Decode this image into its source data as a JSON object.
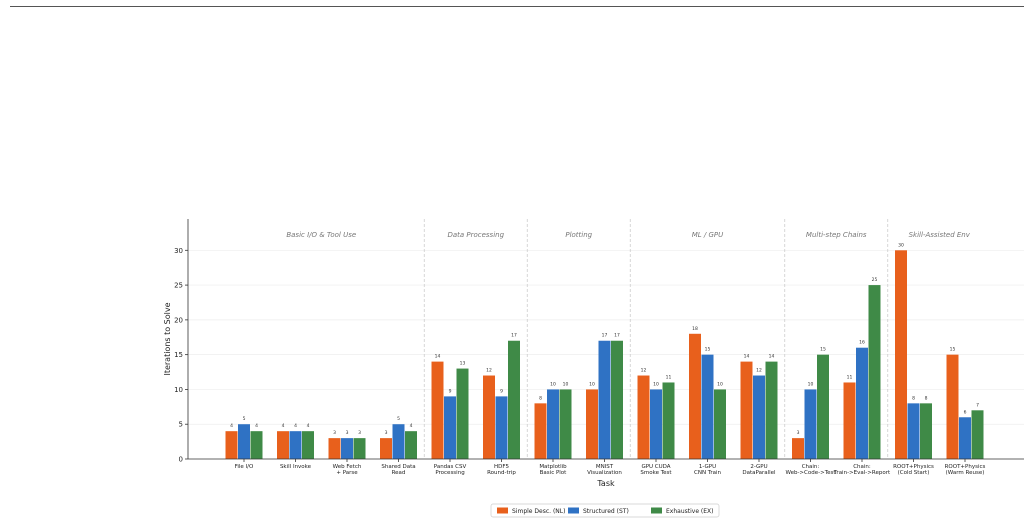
{
  "chart_data": {
    "type": "bar",
    "xlabel": "Task",
    "ylabel": "Iterations to Solve",
    "ylim": [
      0,
      34.5
    ],
    "yticks": [
      0,
      5,
      10,
      15,
      20,
      25,
      30
    ],
    "grid": true,
    "legend_placement": "bottom-center",
    "categories": [
      [
        "File I/O"
      ],
      [
        "Skill Invoke"
      ],
      [
        "Web Fetch",
        "+ Parse"
      ],
      [
        "Shared Data",
        "Read"
      ],
      [
        "Pandas CSV",
        "Processing"
      ],
      [
        "HDF5",
        "Round-trip"
      ],
      [
        "Matplotlib",
        "Basic Plot"
      ],
      [
        "MNIST",
        "Visualization"
      ],
      [
        "GPU CUDA",
        "Smoke Test"
      ],
      [
        "1-GPU",
        "CNN Train"
      ],
      [
        "2-GPU",
        "DataParallel"
      ],
      [
        "Chain:",
        "Web->Code->Test"
      ],
      [
        "Chain:",
        "Train->Eval->Report"
      ],
      [
        "ROOT+Physics",
        "(Cold Start)"
      ],
      [
        "ROOT+Physics",
        "(Warm Reuse)"
      ]
    ],
    "groups": [
      {
        "label": "Basic I/O & Tool Use",
        "start": 0,
        "end": 3
      },
      {
        "label": "Data Processing",
        "start": 4,
        "end": 5
      },
      {
        "label": "Plotting",
        "start": 6,
        "end": 7
      },
      {
        "label": "ML / GPU",
        "start": 8,
        "end": 10
      },
      {
        "label": "Multi-step Chains",
        "start": 11,
        "end": 12
      },
      {
        "label": "Skill-Assisted Env",
        "start": 13,
        "end": 14
      }
    ],
    "series": [
      {
        "name": "Simple Desc. (NL)",
        "color": "#e8601c",
        "values": [
          4,
          4,
          3,
          3,
          14,
          12,
          8,
          10,
          12,
          18,
          14,
          3,
          11,
          30,
          15
        ]
      },
      {
        "name": "Structured (ST)",
        "color": "#2f72c4",
        "values": [
          5,
          4,
          3,
          5,
          9,
          9,
          10,
          17,
          10,
          15,
          12,
          10,
          16,
          8,
          6
        ]
      },
      {
        "name": "Exhaustive (EX)",
        "color": "#3f8a47",
        "values": [
          4,
          4,
          3,
          4,
          13,
          17,
          10,
          17,
          11,
          10,
          14,
          15,
          25,
          8,
          7
        ]
      }
    ]
  }
}
